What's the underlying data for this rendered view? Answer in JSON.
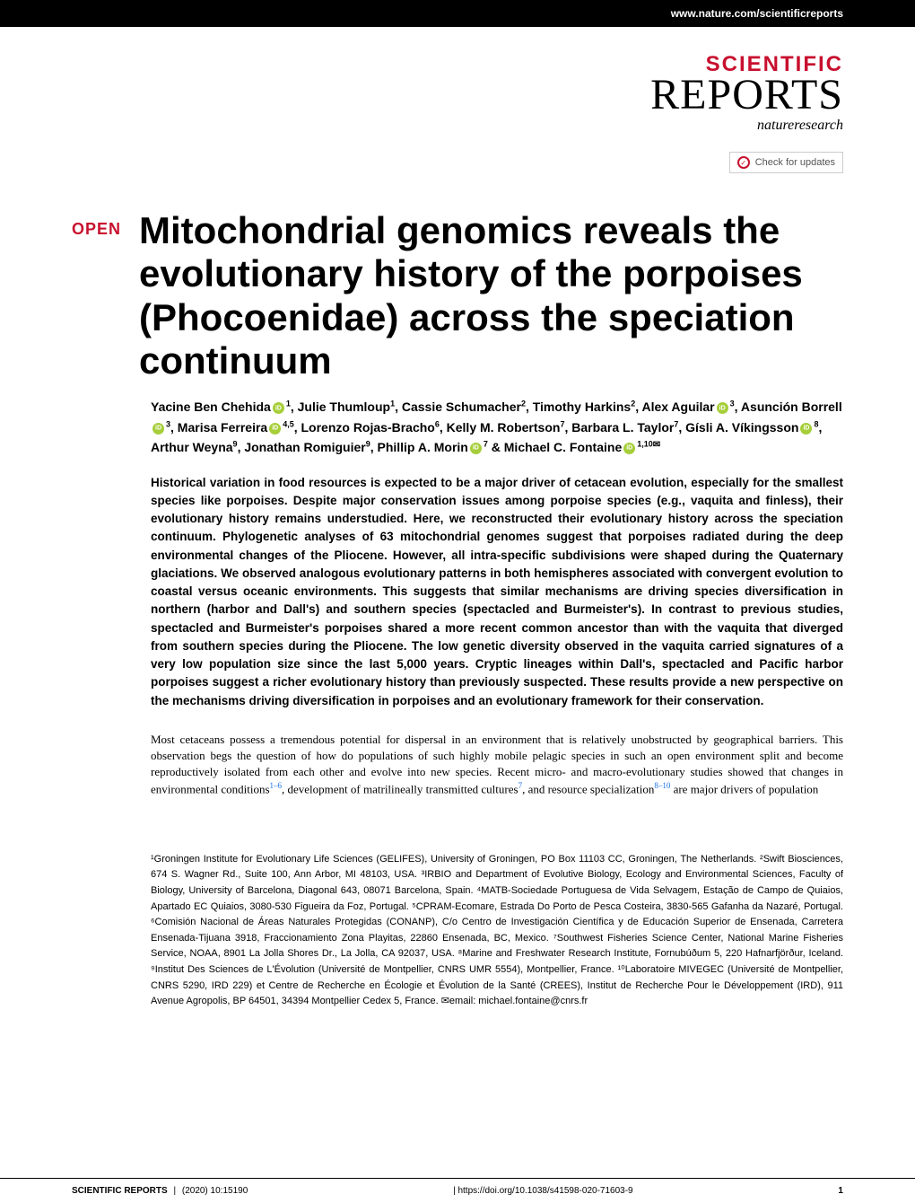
{
  "topbar": {
    "url": "www.nature.com/scientificreports"
  },
  "journal": {
    "line1": "SCIENTIFIC",
    "line2": "REPORTS",
    "tagline": "natureresearch"
  },
  "check_updates": {
    "label": "Check for updates"
  },
  "open_badge": "OPEN",
  "title": "Mitochondrial genomics reveals the evolutionary history of the porpoises (Phocoenidae) across the speciation continuum",
  "authors_html": "Yacine Ben Chehida{orcid}{sup:1}, Julie Thumloup{sup:1}, Cassie Schumacher{sup:2}, Timothy Harkins{sup:2}, Alex Aguilar{orcid}{sup:3}, Asunción Borrell{orcid}{sup:3}, Marisa Ferreira{orcid}{sup:4,5}, Lorenzo Rojas-Bracho{sup:6}, Kelly M. Robertson{sup:7}, Barbara L. Taylor{sup:7}, Gísli A. Víkingsson{orcid}{sup:8}, Arthur Weyna{sup:9}, Jonathan Romiguier{sup:9}, Phillip A. Morin{orcid}{sup:7} & Michael C. Fontaine{orcid}{sup:1,10}{corresp}",
  "abstract": "Historical variation in food resources is expected to be a major driver of cetacean evolution, especially for the smallest species like porpoises. Despite major conservation issues among porpoise species (e.g., vaquita and finless), their evolutionary history remains understudied. Here, we reconstructed their evolutionary history across the speciation continuum. Phylogenetic analyses of 63 mitochondrial genomes suggest that porpoises radiated during the deep environmental changes of the Pliocene. However, all intra-specific subdivisions were shaped during the Quaternary glaciations. We observed analogous evolutionary patterns in both hemispheres associated with convergent evolution to coastal versus oceanic environments. This suggests that similar mechanisms are driving species diversification in northern (harbor and Dall's) and southern species (spectacled and Burmeister's). In contrast to previous studies, spectacled and Burmeister's porpoises shared a more recent common ancestor than with the vaquita that diverged from southern species during the Pliocene. The low genetic diversity observed in the vaquita carried signatures of a very low population size since the last 5,000 years. Cryptic lineages within Dall's, spectacled and Pacific harbor porpoises suggest a richer evolutionary history than previously suspected. These results provide a new perspective on the mechanisms driving diversification in porpoises and an evolutionary framework for their conservation.",
  "body_p1": "Most cetaceans possess a tremendous potential for dispersal in an environment that is relatively unobstructed by geographical barriers. This observation begs the question of how do populations of such highly mobile pelagic species in such an open environment split and become reproductively isolated from each other and evolve into new species. Recent micro- and macro-evolutionary studies showed that changes in environmental conditions",
  "body_refs1": "1–6",
  "body_p1b": ", development of matrilineally transmitted cultures",
  "body_refs2": "7",
  "body_p1c": ", and resource specialization",
  "body_refs3": "8–10",
  "body_p1d": " are major drivers of population",
  "affiliations": "¹Groningen Institute for Evolutionary Life Sciences (GELIFES), University of Groningen, PO Box 11103 CC, Groningen, The Netherlands. ²Swift Biosciences, 674 S. Wagner Rd., Suite 100, Ann Arbor, MI 48103, USA. ³IRBIO and Department of Evolutive Biology, Ecology and Environmental Sciences, Faculty of Biology, University of Barcelona, Diagonal 643, 08071 Barcelona, Spain. ⁴MATB-Sociedade Portuguesa de Vida Selvagem, Estação de Campo de Quiaios, Apartado EC Quiaios, 3080-530 Figueira da Foz, Portugal. ⁵CPRAM-Ecomare, Estrada Do Porto de Pesca Costeira, 3830-565 Gafanha da Nazaré, Portugal. ⁶Comisión Nacional de Áreas Naturales Protegidas (CONANP), C/o Centro de Investigación Científica y de Educación Superior de Ensenada, Carretera Ensenada-Tijuana 3918, Fraccionamiento Zona Playitas, 22860 Ensenada, BC, Mexico. ⁷Southwest Fisheries Science Center, National Marine Fisheries Service, NOAA, 8901 La Jolla Shores Dr., La Jolla, CA 92037, USA. ⁸Marine and Freshwater Research Institute, Fornubúðum 5, 220 Hafnarfjörður, Iceland. ⁹Institut Des Sciences de L'Évolution (Université de Montpellier, CNRS UMR 5554), Montpellier, France. ¹⁰Laboratoire MIVEGEC (Université de Montpellier, CNRS 5290, IRD 229) et Centre de Recherche en Écologie et Évolution de la Santé (CREES), Institut de Recherche Pour le Développement (IRD), 911 Avenue Agropolis, BP 64501, 34394 Montpellier Cedex 5, France. ✉email: michael.fontaine@cnrs.fr",
  "footer": {
    "journal": "SCIENTIFIC REPORTS",
    "sep": "|",
    "citation": "(2020) 10:15190",
    "doi": "| https://doi.org/10.1038/s41598-020-71603-9",
    "page": "1"
  },
  "colors": {
    "brand_red": "#c8102e",
    "orcid_green": "#a6ce39",
    "link_blue": "#1a73e8",
    "text": "#000000",
    "bg": "#ffffff"
  },
  "typography": {
    "title_fontsize": 42,
    "title_weight": "bold",
    "author_fontsize": 14,
    "abstract_fontsize": 13.5,
    "body_fontsize": 13,
    "affil_fontsize": 11,
    "footer_fontsize": 10
  }
}
